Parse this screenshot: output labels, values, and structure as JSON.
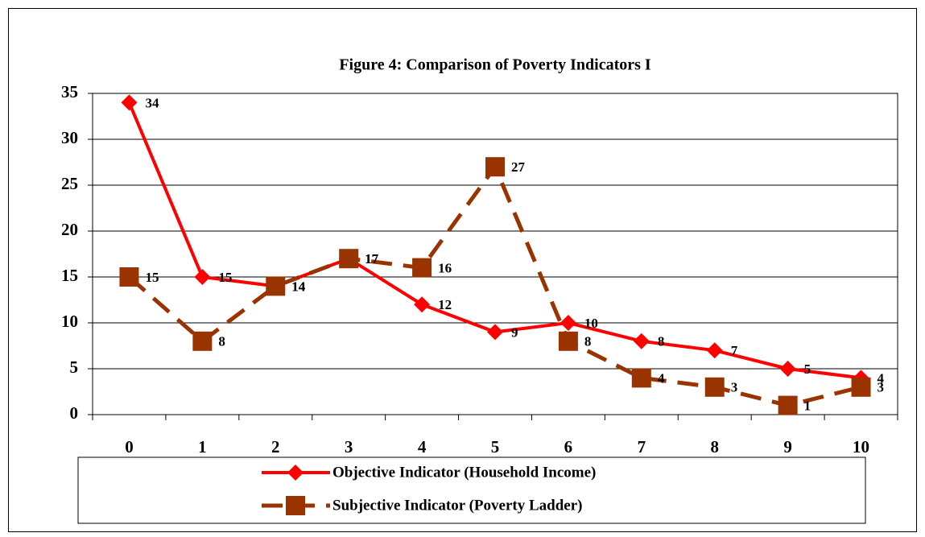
{
  "chart_data": {
    "type": "line",
    "title": "Figure 4:  Comparison of Poverty Indicators I",
    "categories": [
      "0",
      "1",
      "2",
      "3",
      "4",
      "5",
      "6",
      "7",
      "8",
      "9",
      "10"
    ],
    "series": [
      {
        "name": "Objective Indicator (Household Income)",
        "color": "#ff0000",
        "marker": "diamond",
        "dash": false,
        "values": [
          34,
          15,
          14,
          17,
          12,
          9,
          10,
          8,
          7,
          5,
          4
        ]
      },
      {
        "name": "Subjective Indicator (Poverty Ladder)",
        "color": "#993300",
        "marker": "square",
        "dash": true,
        "values": [
          15,
          8,
          14,
          17,
          16,
          27,
          8,
          4,
          3,
          1,
          3
        ]
      }
    ],
    "ylim": [
      0,
      35
    ],
    "yticks": [
      0,
      5,
      10,
      15,
      20,
      25,
      30,
      35
    ],
    "grid": true,
    "legend": "bottom"
  }
}
